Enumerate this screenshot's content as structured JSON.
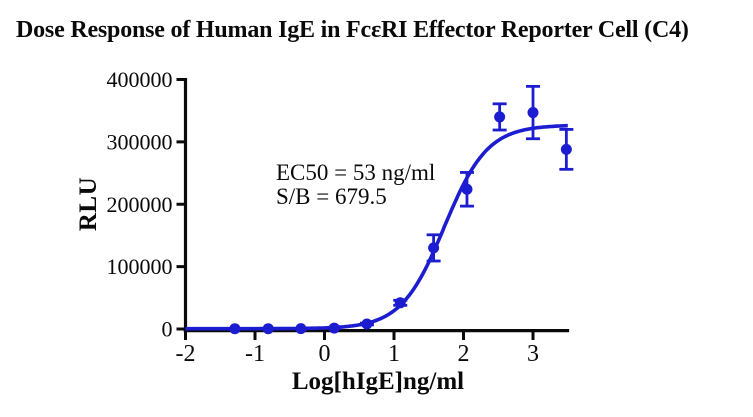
{
  "title": "Dose Response of Human IgE in FcεRI Effector Reporter Cell (C4)",
  "chart_data": {
    "type": "scatter",
    "title": "Dose Response of Human IgE in FcεRI Effector Reporter Cell (C4)",
    "xlabel": "Log[hIgE]ng/ml",
    "ylabel": "RLU",
    "xlim": [
      -2,
      3.52
    ],
    "ylim": [
      0,
      400000
    ],
    "x_ticks": [
      -2,
      -1,
      0,
      1,
      2,
      3
    ],
    "y_ticks": [
      0,
      100000,
      200000,
      300000,
      400000
    ],
    "grid": false,
    "legend": "none",
    "series_color": "#1c1cd0",
    "axis_color": "#0a0a0a",
    "points": [
      {
        "x": -1.29,
        "y": 500,
        "err": 200
      },
      {
        "x": -0.81,
        "y": 500,
        "err": 200
      },
      {
        "x": -0.34,
        "y": 600,
        "err": 200
      },
      {
        "x": 0.14,
        "y": 1500,
        "err": 400
      },
      {
        "x": 0.61,
        "y": 8000,
        "err": 1500
      },
      {
        "x": 1.09,
        "y": 42000,
        "err": 4000
      },
      {
        "x": 1.57,
        "y": 130000,
        "err": 21000
      },
      {
        "x": 2.05,
        "y": 224000,
        "err": 27000
      },
      {
        "x": 2.52,
        "y": 340000,
        "err": 21000
      },
      {
        "x": 3.0,
        "y": 347000,
        "err": 42000
      },
      {
        "x": 3.48,
        "y": 288000,
        "err": 32000
      }
    ],
    "fit": {
      "model": "4PL sigmoidal dose-response",
      "bottom": 500,
      "top": 327000,
      "logEC50": 1.724,
      "hillslope": 1.4,
      "ec50_ng_ml": 53,
      "signal_to_background": 679.5,
      "curve_x_range": [
        -2,
        3.5
      ]
    },
    "annotations": [
      "EC50 = 53 ng/ml",
      "S/B = 679.5"
    ]
  }
}
